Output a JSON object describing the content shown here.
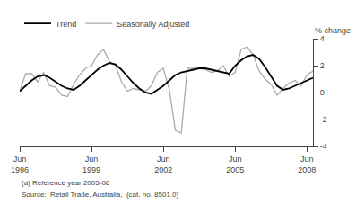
{
  "chart_data": {
    "type": "line",
    "categories": [
      "Jun\n1996",
      null,
      null,
      null,
      null,
      null,
      null,
      null,
      null,
      null,
      null,
      null,
      "Jun\n1999",
      null,
      null,
      null,
      null,
      null,
      null,
      null,
      null,
      null,
      null,
      null,
      "Jun\n2002",
      null,
      null,
      null,
      null,
      null,
      null,
      null,
      null,
      null,
      null,
      null,
      "Jun\n2005",
      null,
      null,
      null,
      null,
      null,
      null,
      null,
      null,
      null,
      null,
      null,
      "Jun\n2008",
      null
    ],
    "series": [
      {
        "name": "Trend",
        "color": "#000000",
        "values": [
          0.1,
          0.5,
          0.9,
          1.2,
          1.3,
          1.1,
          0.8,
          0.5,
          0.3,
          0.2,
          0.5,
          0.9,
          1.3,
          1.7,
          2.0,
          2.2,
          2.1,
          1.7,
          1.2,
          0.7,
          0.3,
          0.0,
          -0.1,
          0.2,
          0.5,
          0.9,
          1.3,
          1.5,
          1.6,
          1.7,
          1.8,
          1.8,
          1.7,
          1.6,
          1.5,
          1.4,
          2.0,
          2.4,
          2.7,
          2.8,
          2.5,
          1.9,
          1.2,
          0.5,
          0.2,
          0.3,
          0.5,
          0.7,
          0.9,
          1.1
        ]
      },
      {
        "name": "Seasonally Adjusted",
        "color": "#aaaaaa",
        "values": [
          0.1,
          1.4,
          1.4,
          0.8,
          1.5,
          0.5,
          0.4,
          -0.2,
          -0.3,
          0.6,
          1.3,
          1.8,
          2.0,
          2.8,
          3.2,
          2.3,
          2.0,
          0.8,
          0.1,
          0.3,
          0.2,
          0.1,
          0.5,
          1.5,
          1.8,
          0.2,
          -2.8,
          -3.0,
          1.8,
          1.8,
          1.8,
          1.7,
          1.5,
          1.6,
          2.0,
          1.2,
          1.5,
          3.2,
          3.4,
          2.8,
          1.6,
          1.0,
          0.6,
          -0.2,
          0.3,
          0.7,
          0.9,
          0.5,
          1.3,
          1.6
        ]
      }
    ],
    "ylabel": "% change",
    "ylim": [
      -4,
      4
    ],
    "yticks": [
      -4,
      -2,
      0,
      2,
      4
    ],
    "grid": false,
    "legend": "upper left",
    "annotations": [
      "(a) Reference year 2005-06",
      "Source:  Retail Trade, Australia,  (cat. no. 8501.0)"
    ]
  }
}
